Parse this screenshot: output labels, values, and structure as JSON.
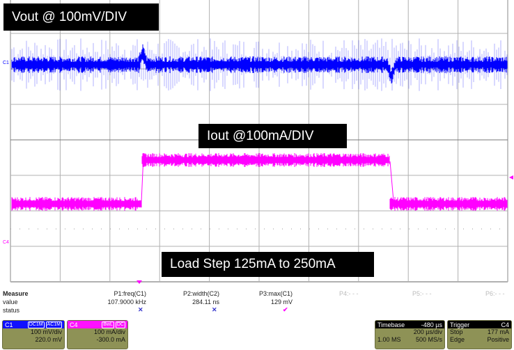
{
  "annotations": {
    "vout": "Vout @ 100mV/DIV",
    "iout": "Iout @100mA/DIV",
    "load_step": "Load Step 125mA to 250mA"
  },
  "markers": {
    "c1": "C1",
    "c4": "C4"
  },
  "colors": {
    "c1": "#0000ff",
    "c4": "#ff00ff",
    "panel": "#8e9256",
    "grid": "#b0b0b0"
  },
  "measure": {
    "title": "Measure",
    "row_value": "value",
    "row_status": "status",
    "params": [
      {
        "name": "P1:freq(C1)",
        "value": "107.9000 kHz",
        "status": "x-icon"
      },
      {
        "name": "P2:width(C2)",
        "value": "284.11 ns",
        "status": "x-icon"
      },
      {
        "name": "P3:max(C1)",
        "value": "129 mV",
        "status": "check-icon"
      },
      {
        "name": "P4:- - -"
      },
      {
        "name": "P5:- - -"
      },
      {
        "name": "P6:- - -"
      }
    ]
  },
  "channels": [
    {
      "name": "C1",
      "tags": "DC1M",
      "coupling": "AC1M",
      "scale": "100 mV/div",
      "offset": "220.0 mV"
    },
    {
      "name": "C4",
      "tags": "BwL",
      "coupling": "DC",
      "scale": "100 mA/div",
      "offset": "-300.0 mA"
    }
  ],
  "timebase": {
    "label": "Timebase",
    "delay": "-480 µs",
    "scale": "200 µs/div",
    "samples": "1.00 MS",
    "rate": "500 MS/s"
  },
  "trigger": {
    "label": "Trigger",
    "source": "C4",
    "mode": "Stop",
    "level": "177 mA",
    "type": "Edge",
    "slope": "Positive"
  }
}
